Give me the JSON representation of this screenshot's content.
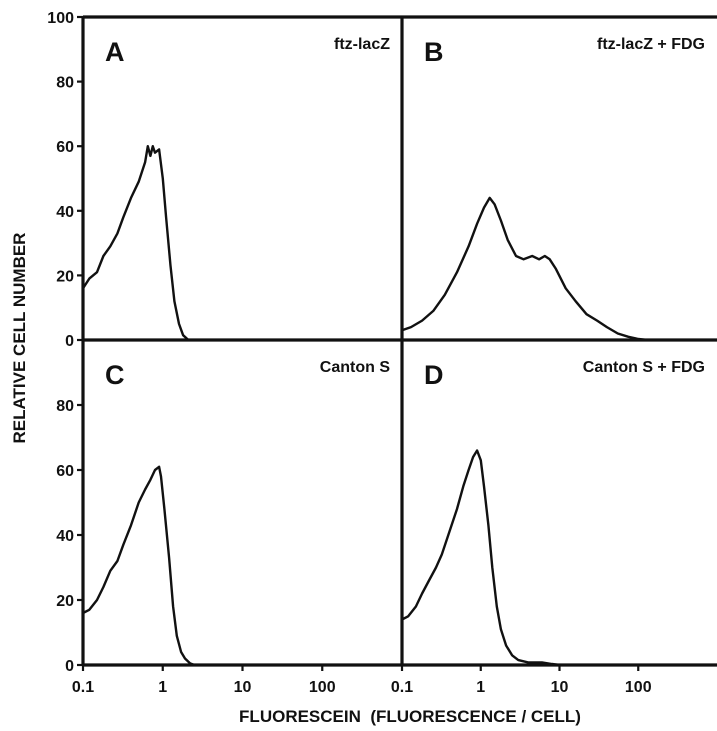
{
  "chart_data": {
    "type": "line",
    "ylabel": "RELATIVE CELL NUMBER",
    "xlabel": "FLUORESCEIN  (FLUORESCENCE / CELL)",
    "x_scale": "log",
    "xlim": [
      0.1,
      1000
    ],
    "ylim": [
      0,
      100
    ],
    "x_ticks": [
      "0.1",
      "1",
      "10",
      "100"
    ],
    "y_ticks_top": [
      "100",
      "80",
      "60",
      "40",
      "20",
      "0"
    ],
    "y_ticks_bottom": [
      "80",
      "60",
      "40",
      "20",
      "0"
    ],
    "line_color": "#111111",
    "panels": [
      {
        "letter": "A",
        "label": "ftz-lacZ",
        "points": [
          [
            0.1,
            16
          ],
          [
            0.12,
            19
          ],
          [
            0.15,
            21
          ],
          [
            0.18,
            26
          ],
          [
            0.22,
            29
          ],
          [
            0.27,
            33
          ],
          [
            0.32,
            38
          ],
          [
            0.4,
            44
          ],
          [
            0.5,
            49
          ],
          [
            0.6,
            55
          ],
          [
            0.65,
            60
          ],
          [
            0.7,
            57
          ],
          [
            0.75,
            60
          ],
          [
            0.8,
            58
          ],
          [
            0.9,
            59
          ],
          [
            1.0,
            50
          ],
          [
            1.1,
            38
          ],
          [
            1.25,
            23
          ],
          [
            1.4,
            12
          ],
          [
            1.6,
            5
          ],
          [
            1.8,
            1.5
          ],
          [
            2.1,
            0
          ],
          [
            1000,
            0
          ]
        ]
      },
      {
        "letter": "B",
        "label": "ftz-lacZ + FDG",
        "points": [
          [
            0.1,
            3
          ],
          [
            0.13,
            4
          ],
          [
            0.18,
            6
          ],
          [
            0.25,
            9
          ],
          [
            0.35,
            14
          ],
          [
            0.5,
            21
          ],
          [
            0.7,
            29
          ],
          [
            0.9,
            36
          ],
          [
            1.1,
            41
          ],
          [
            1.3,
            44
          ],
          [
            1.5,
            42
          ],
          [
            1.8,
            37
          ],
          [
            2.2,
            31
          ],
          [
            2.8,
            26
          ],
          [
            3.5,
            25
          ],
          [
            4.5,
            26
          ],
          [
            5.5,
            25
          ],
          [
            6.5,
            26
          ],
          [
            7.5,
            25
          ],
          [
            9,
            22
          ],
          [
            12,
            16
          ],
          [
            16,
            12
          ],
          [
            22,
            8
          ],
          [
            30,
            6
          ],
          [
            40,
            4
          ],
          [
            55,
            2
          ],
          [
            75,
            1
          ],
          [
            100,
            0.3
          ],
          [
            130,
            0
          ],
          [
            1000,
            0
          ]
        ]
      },
      {
        "letter": "C",
        "label": "Canton S",
        "points": [
          [
            0.1,
            16
          ],
          [
            0.12,
            17
          ],
          [
            0.15,
            20
          ],
          [
            0.18,
            24
          ],
          [
            0.22,
            29
          ],
          [
            0.27,
            32
          ],
          [
            0.32,
            37
          ],
          [
            0.4,
            43
          ],
          [
            0.5,
            50
          ],
          [
            0.6,
            54
          ],
          [
            0.7,
            57
          ],
          [
            0.8,
            60
          ],
          [
            0.9,
            61
          ],
          [
            0.95,
            58
          ],
          [
            1.05,
            48
          ],
          [
            1.2,
            33
          ],
          [
            1.35,
            18
          ],
          [
            1.5,
            9
          ],
          [
            1.7,
            4
          ],
          [
            1.9,
            2
          ],
          [
            2.2,
            0.5
          ],
          [
            2.5,
            0
          ],
          [
            1000,
            0
          ]
        ]
      },
      {
        "letter": "D",
        "label": "Canton S + FDG",
        "points": [
          [
            0.1,
            14
          ],
          [
            0.12,
            15
          ],
          [
            0.15,
            18
          ],
          [
            0.18,
            22
          ],
          [
            0.22,
            26
          ],
          [
            0.27,
            30
          ],
          [
            0.32,
            34
          ],
          [
            0.4,
            41
          ],
          [
            0.5,
            48
          ],
          [
            0.6,
            55
          ],
          [
            0.7,
            60
          ],
          [
            0.8,
            64
          ],
          [
            0.9,
            66
          ],
          [
            1.0,
            63
          ],
          [
            1.1,
            55
          ],
          [
            1.25,
            43
          ],
          [
            1.4,
            30
          ],
          [
            1.6,
            18
          ],
          [
            1.8,
            11
          ],
          [
            2.1,
            6
          ],
          [
            2.5,
            3
          ],
          [
            3,
            1.5
          ],
          [
            4,
            0.8
          ],
          [
            6,
            0.8
          ],
          [
            8,
            0.3
          ],
          [
            10,
            0
          ],
          [
            1000,
            0
          ]
        ]
      }
    ]
  }
}
